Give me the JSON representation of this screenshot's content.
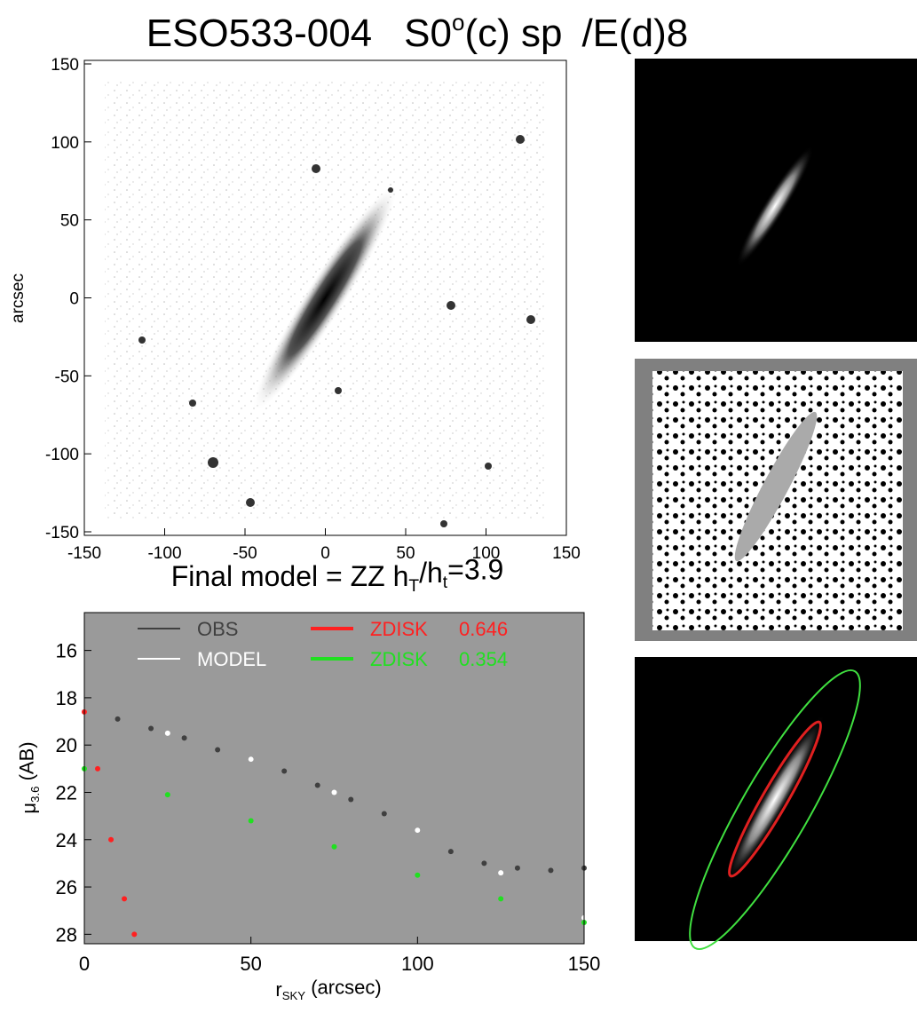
{
  "title": [
    "ESO533-004",
    "S0",
    "o",
    "(c) sp",
    "/E(d)8"
  ],
  "chart_data": [
    {
      "type": "image",
      "ylabel": "arcsec",
      "xlim": [
        -150,
        150
      ],
      "ylim": [
        -150,
        150
      ],
      "xticks": [
        -150,
        -100,
        -50,
        0,
        50,
        100,
        150
      ],
      "yticks": [
        -150,
        -100,
        -50,
        0,
        50,
        100,
        150
      ]
    },
    {
      "type": "scatter",
      "title": [
        "Final model = ZZ  h",
        "T",
        "/h",
        "t",
        "=3.9"
      ],
      "xlabel": [
        "r",
        "SKY",
        " (arcsec)"
      ],
      "ylabel": [
        "μ",
        "3.6",
        " (AB)"
      ],
      "xlim": [
        0,
        150
      ],
      "ylim": [
        14.4,
        28.4
      ],
      "y_reversed": true,
      "xticks": [
        0,
        50,
        100,
        150
      ],
      "yticks": [
        16,
        18,
        20,
        22,
        24,
        26,
        28
      ],
      "background": "#9a9a9a",
      "series": [
        {
          "name": "OBS",
          "color": "#404040",
          "x": [
            0,
            10,
            20,
            30,
            40,
            50,
            60,
            70,
            80,
            90,
            100,
            110,
            120,
            130,
            140,
            150
          ],
          "values": [
            18.6,
            18.9,
            19.3,
            19.7,
            20.2,
            20.6,
            21.1,
            21.7,
            22.3,
            22.9,
            23.6,
            24.5,
            25.0,
            25.2,
            25.3,
            25.2
          ]
        },
        {
          "name": "MODEL",
          "color": "#ffffff",
          "x": [
            0,
            25,
            50,
            75,
            100,
            125,
            150
          ],
          "values": [
            18.6,
            19.5,
            20.6,
            22.0,
            23.6,
            25.4,
            27.3
          ]
        },
        {
          "name": "ZDISK",
          "fraction": 0.646,
          "color": "#ff2020",
          "x": [
            0,
            4,
            8,
            12,
            15
          ],
          "values": [
            18.6,
            21.0,
            24.0,
            26.5,
            28.0
          ]
        },
        {
          "name": "ZDISK",
          "fraction": 0.354,
          "color": "#20e020",
          "x": [
            0,
            25,
            50,
            75,
            100,
            125,
            150
          ],
          "values": [
            21.0,
            22.1,
            23.2,
            24.3,
            25.5,
            26.5,
            27.5
          ]
        }
      ]
    }
  ]
}
